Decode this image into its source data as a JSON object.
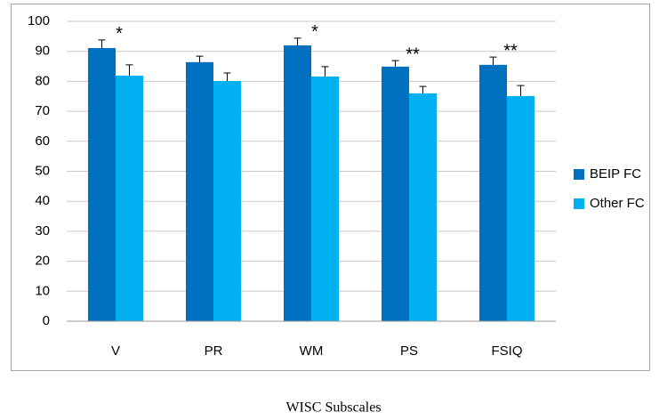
{
  "chart_data": {
    "type": "bar",
    "x_label": "WISC Subscales",
    "categories": [
      "V",
      "PR",
      "WM",
      "PS",
      "FSIQ"
    ],
    "series": [
      {
        "name": "BEIP FC",
        "color": "#0070c0",
        "values": [
          91.1,
          86.4,
          92,
          84.9,
          85.5
        ],
        "errors": [
          2.7,
          2,
          2.4,
          2,
          2.6
        ]
      },
      {
        "name": "Other FC",
        "color": "#00b0f0",
        "values": [
          81.9,
          80.1,
          81.6,
          76,
          75.1
        ],
        "errors": [
          3.6,
          2.7,
          3.3,
          2.3,
          3.5
        ]
      }
    ],
    "annotations": [
      {
        "text": "*",
        "category": "V"
      },
      {
        "text": "*",
        "category": "WM"
      },
      {
        "text": "**",
        "category": "PS"
      },
      {
        "text": "**",
        "category": "FSIQ"
      }
    ],
    "ylim": [
      0,
      100
    ],
    "yticks": [
      0,
      10,
      20,
      30,
      40,
      50,
      60,
      70,
      80,
      90,
      100
    ],
    "grid": true,
    "legend": "right"
  }
}
